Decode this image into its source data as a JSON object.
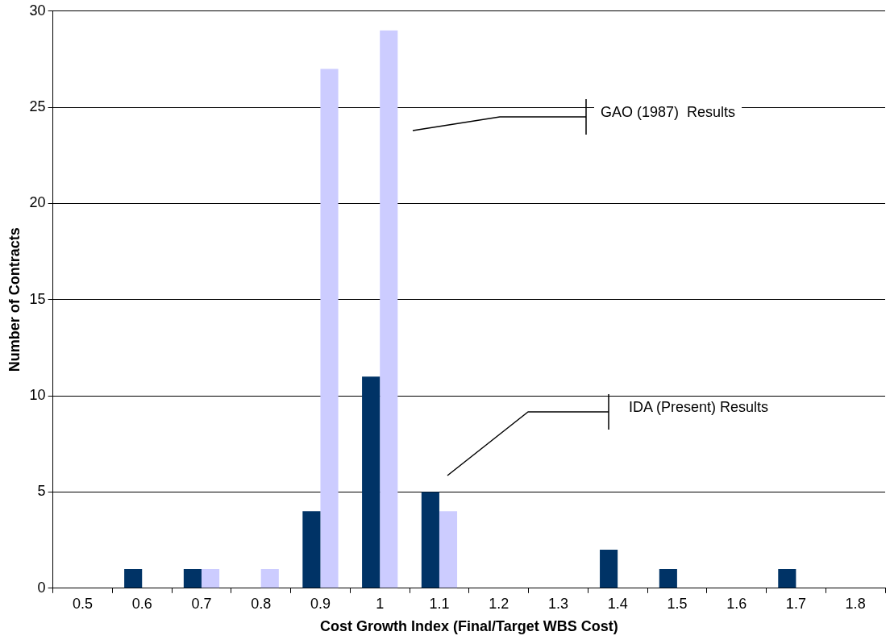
{
  "chart_data": {
    "type": "bar",
    "xlabel": "Cost Growth Index (Final/Target WBS Cost)",
    "ylabel": "Number of Contracts",
    "categories": [
      "0.5",
      "0.6",
      "0.7",
      "0.8",
      "0.9",
      "1",
      "1.1",
      "1.2",
      "1.3",
      "1.4",
      "1.5",
      "1.6",
      "1.7",
      "1.8"
    ],
    "series": [
      {
        "color": "#003366",
        "values": [
          0,
          1,
          1,
          0,
          4,
          11,
          5,
          0,
          0,
          2,
          1,
          0,
          1,
          0
        ]
      },
      {
        "color": "#ccccff",
        "values": [
          0,
          0,
          1,
          1,
          27,
          29,
          4,
          0,
          0,
          0,
          0,
          0,
          0,
          0
        ]
      }
    ],
    "ylim": [
      0,
      30
    ],
    "yticks": [
      0,
      5,
      10,
      15,
      20,
      25,
      30
    ],
    "grid": "y",
    "legend": false,
    "annotations": [
      "GAO (1987)  Results",
      "IDA (Present) Results"
    ]
  }
}
